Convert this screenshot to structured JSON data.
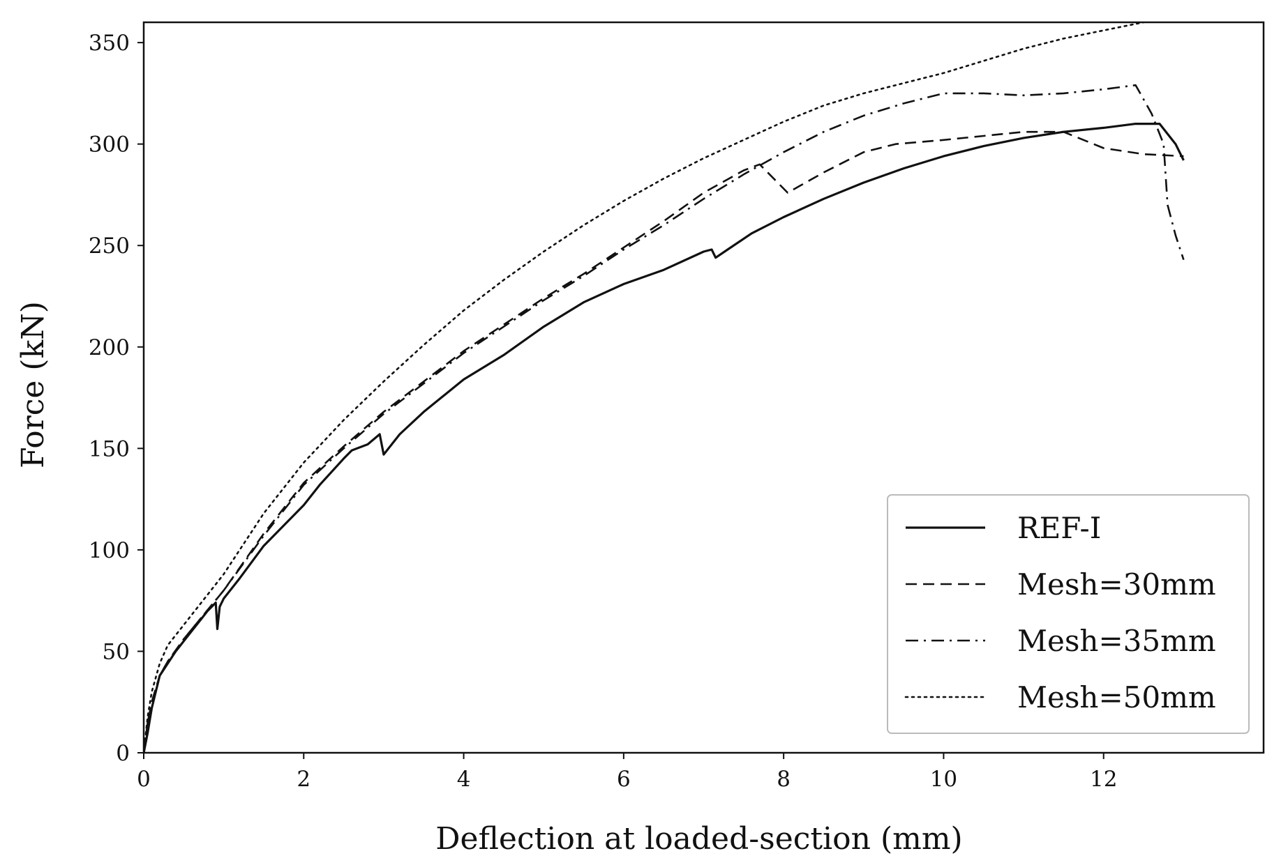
{
  "chart_data": {
    "type": "line",
    "title": "",
    "xlabel": "Deflection at loaded-section (mm)",
    "ylabel": "Force (kN)",
    "xlim": [
      0,
      14
    ],
    "ylim": [
      0,
      360
    ],
    "xticks": [
      0,
      2,
      4,
      6,
      8,
      10,
      12
    ],
    "yticks": [
      0,
      50,
      100,
      150,
      200,
      250,
      300,
      350
    ],
    "grid": false,
    "legend_position": "bottom-right",
    "series": [
      {
        "name": "REF-I",
        "style": "solid",
        "x": [
          0,
          0.05,
          0.1,
          0.2,
          0.3,
          0.4,
          0.5,
          0.6,
          0.7,
          0.8,
          0.9,
          0.92,
          0.95,
          1.0,
          1.2,
          1.5,
          2.0,
          2.2,
          2.5,
          2.6,
          2.8,
          2.95,
          3.0,
          3.2,
          3.5,
          4.0,
          4.5,
          5.0,
          5.5,
          6.0,
          6.5,
          7.0,
          7.1,
          7.15,
          7.3,
          7.6,
          8.0,
          8.5,
          9.0,
          9.5,
          10.0,
          10.5,
          11.0,
          11.5,
          12.0,
          12.4,
          12.7,
          12.9,
          13.0
        ],
        "y": [
          0,
          10,
          22,
          38,
          44,
          50,
          55,
          60,
          65,
          70,
          74,
          61,
          72,
          76,
          86,
          102,
          122,
          132,
          145,
          149,
          152,
          157,
          147,
          157,
          168,
          184,
          196,
          210,
          222,
          231,
          238,
          247,
          248,
          244,
          248,
          256,
          264,
          273,
          281,
          288,
          294,
          299,
          303,
          306,
          308,
          310,
          310,
          300,
          292
        ]
      },
      {
        "name": "Mesh=30mm",
        "style": "dashed",
        "x": [
          0,
          0.05,
          0.1,
          0.2,
          0.3,
          0.5,
          1.0,
          1.5,
          2.0,
          2.5,
          3.0,
          3.5,
          4.0,
          4.5,
          5.0,
          5.5,
          6.0,
          6.5,
          7.0,
          7.5,
          7.7,
          8.05,
          8.5,
          9.0,
          9.4,
          10.0,
          10.5,
          11.0,
          11.5,
          12.0,
          12.5,
          13.0
        ],
        "y": [
          0,
          15,
          25,
          38,
          45,
          56,
          80,
          108,
          133,
          151,
          168,
          183,
          198,
          211,
          224,
          236,
          249,
          262,
          276,
          287,
          290,
          276,
          286,
          296,
          300,
          302,
          304,
          306,
          306,
          298,
          295,
          294
        ]
      },
      {
        "name": "Mesh=35mm",
        "style": "dashdot",
        "x": [
          0,
          0.05,
          0.1,
          0.2,
          0.3,
          0.5,
          1.0,
          1.5,
          2.0,
          2.5,
          3.0,
          3.5,
          4.0,
          4.5,
          5.0,
          5.5,
          6.0,
          6.5,
          7.0,
          7.5,
          8.0,
          8.5,
          9.0,
          9.5,
          10.0,
          10.5,
          11.0,
          11.5,
          12.0,
          12.4,
          12.6,
          12.75,
          12.8,
          12.9,
          13.0
        ],
        "y": [
          0,
          15,
          25,
          38,
          45,
          56,
          80,
          107,
          132,
          150,
          167,
          182,
          197,
          210,
          223,
          235,
          248,
          260,
          273,
          285,
          296,
          306,
          314,
          320,
          325,
          325,
          324,
          325,
          327,
          329,
          315,
          300,
          270,
          255,
          243
        ]
      },
      {
        "name": "Mesh=50mm",
        "style": "dotted",
        "x": [
          0,
          0.05,
          0.1,
          0.2,
          0.3,
          0.5,
          1.0,
          1.5,
          2.0,
          2.5,
          3.0,
          3.5,
          4.0,
          4.5,
          5.0,
          5.5,
          6.0,
          6.5,
          7.0,
          7.5,
          8.0,
          8.5,
          9.0,
          9.5,
          10.0,
          10.5,
          11.0,
          11.5,
          12.0,
          12.5
        ],
        "y": [
          0,
          18,
          30,
          44,
          53,
          63,
          88,
          118,
          143,
          164,
          183,
          201,
          218,
          233,
          247,
          260,
          272,
          283,
          293,
          302,
          311,
          319,
          325,
          330,
          335,
          341,
          347,
          352,
          356,
          360
        ]
      }
    ]
  }
}
